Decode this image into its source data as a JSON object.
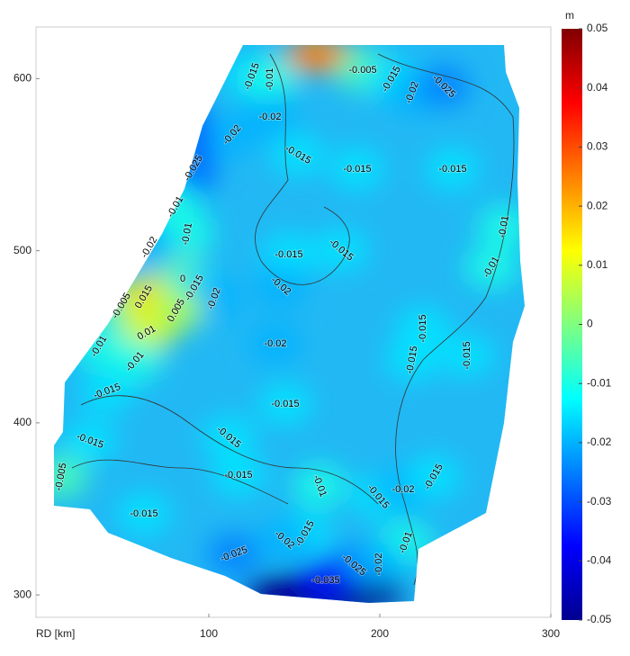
{
  "chart_data": {
    "type": "contour_map",
    "x_label": "RD [km]",
    "xlim": [
      0,
      300
    ],
    "xticks": [
      100,
      200,
      300
    ],
    "ylim": [
      287,
      630
    ],
    "yticks": [
      300,
      400,
      500,
      600
    ],
    "colorbar": {
      "unit": "m",
      "clim": [
        -0.05,
        0.05
      ],
      "ticks": [
        0.05,
        0.04,
        0.03,
        0.02,
        0.01,
        0,
        -0.01,
        -0.02,
        -0.03,
        -0.04,
        -0.05
      ]
    },
    "contour_labels": [
      -0.015,
      -0.01,
      -0.005,
      -0.015,
      -0.02,
      -0.025,
      -0.02,
      -0.02,
      -0.015,
      -0.015,
      -0.015,
      -0.025,
      -0.01,
      -0.01,
      -0.01,
      -0.02,
      -0.015,
      -0.015,
      -0.01,
      0,
      -0.015,
      -0.02,
      -0.02,
      -0.005,
      0.015,
      0.005,
      0.01,
      -0.01,
      -0.01,
      -0.015,
      -0.02,
      -0.015,
      -0.015,
      -0.015,
      -0.015,
      -0.015,
      -0.015,
      -0.005,
      -0.015,
      -0.01,
      -0.015,
      -0.02,
      -0.015,
      -0.015,
      -0.015,
      -0.02,
      -0.01,
      -0.025,
      -0.025,
      -0.02,
      -0.035
    ]
  }
}
